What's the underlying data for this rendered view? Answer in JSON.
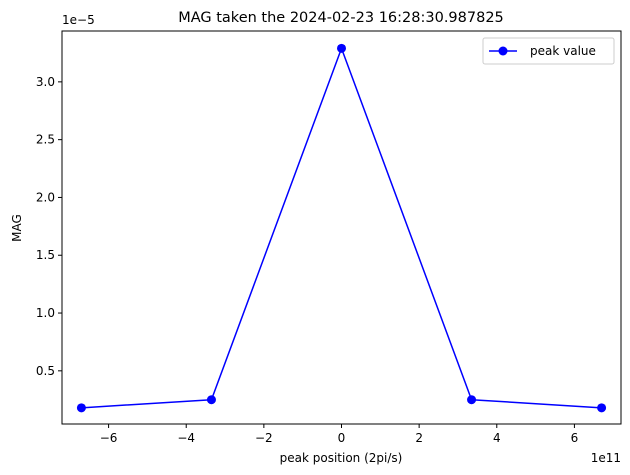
{
  "chart_data": {
    "type": "line",
    "title": "MAG taken the 2024-02-23 16:28:30.987825",
    "xlabel": "peak position (2pi/s)",
    "ylabel": "MAG",
    "x_offset_text": "1e11",
    "y_offset_text": "1e−5",
    "xlim": [
      -7.2,
      7.2
    ],
    "ylim": [
      0.04,
      3.44
    ],
    "x_scale_exponent": 11,
    "y_scale_exponent": -5,
    "xticks": [
      {
        "value": -6,
        "label": "−6"
      },
      {
        "value": -4,
        "label": "−4"
      },
      {
        "value": -2,
        "label": "−2"
      },
      {
        "value": 0,
        "label": "0"
      },
      {
        "value": 2,
        "label": "2"
      },
      {
        "value": 4,
        "label": "4"
      },
      {
        "value": 6,
        "label": "6"
      }
    ],
    "yticks": [
      {
        "value": 0.5,
        "label": "0.5"
      },
      {
        "value": 1.0,
        "label": "1.0"
      },
      {
        "value": 1.5,
        "label": "1.5"
      },
      {
        "value": 2.0,
        "label": "2.0"
      },
      {
        "value": 2.5,
        "label": "2.5"
      },
      {
        "value": 3.0,
        "label": "3.0"
      }
    ],
    "series": [
      {
        "name": "peak value",
        "color": "#0000ff",
        "marker": "circle",
        "x": [
          -6.7,
          -3.35,
          0,
          3.35,
          6.7
        ],
        "y": [
          0.18,
          0.25,
          3.29,
          0.25,
          0.18
        ]
      }
    ],
    "legend": {
      "position": "top-right"
    },
    "grid": false
  }
}
